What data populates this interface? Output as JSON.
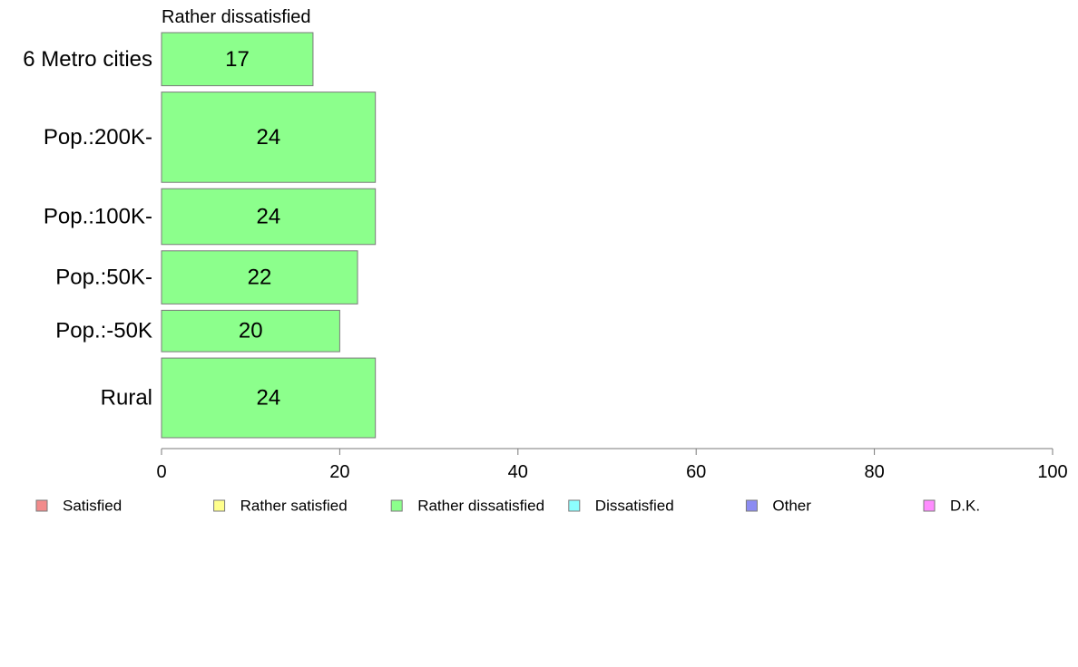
{
  "chart_data": {
    "type": "bar",
    "orientation": "horizontal",
    "panel_title": "Rather dissatisfied",
    "categories": [
      "6 Metro cities",
      "Pop.:200K-",
      "Pop.:100K-",
      "Pop.:50K-",
      "Pop.:-50K",
      "Rural"
    ],
    "values": [
      17,
      24,
      24,
      22,
      20,
      24
    ],
    "relative_group_sizes": [
      1.0,
      1.7,
      1.05,
      1.0,
      0.78,
      1.5
    ],
    "bar_color": "#8cff8c",
    "xlim": [
      0,
      100
    ],
    "xticks": [
      0,
      20,
      40,
      60,
      80,
      100
    ],
    "xlabel": "",
    "ylabel": "",
    "legend": [
      {
        "label": "Satisfied",
        "color": "#f28b8b"
      },
      {
        "label": "Rather satisfied",
        "color": "#ffff8c"
      },
      {
        "label": "Rather dissatisfied",
        "color": "#8cff8c"
      },
      {
        "label": "Dissatisfied",
        "color": "#8cffff"
      },
      {
        "label": "Other",
        "color": "#8c8cf2"
      },
      {
        "label": "D.K.",
        "color": "#ff8cff"
      }
    ],
    "legend_position": "bottom"
  }
}
